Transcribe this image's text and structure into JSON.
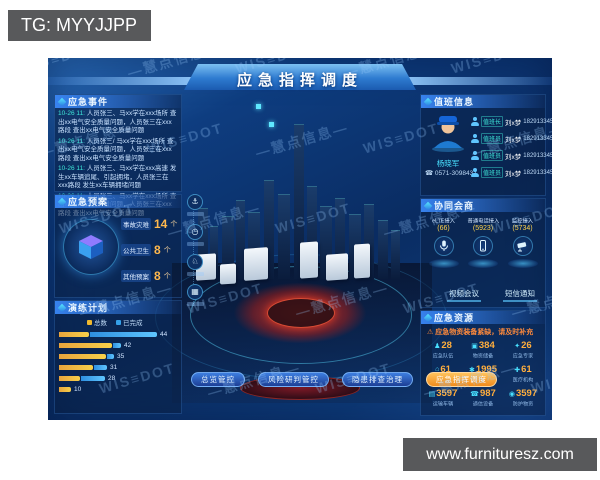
{
  "overlays": {
    "tg_label": "TG: MYYJJPP",
    "site_label": "www.furnituresz.com"
  },
  "header": {
    "title": "应急指挥调度"
  },
  "watermark": {
    "brand": "WIS≡DOT",
    "cn": "—慧点信息—"
  },
  "colors": {
    "accent_teal": "#3ee6d8",
    "accent_yellow": "#f0b92e",
    "accent_blue": "#35a0e8",
    "warn_orange": "#ff8a3c",
    "button_orange": "#f08c1e"
  },
  "panels": {
    "events": {
      "title": "应急事件",
      "items": [
        {
          "tag": "10-26 11:",
          "text": "人员张三、马xx学在xxx场所 查出xx电气安全质量问题，人员张三在xxx路段 查出xx电气安全质量问题"
        },
        {
          "tag": "10-26 11:",
          "text": "人员张三/ 马xx学在xxx场所 查出xx电气安全质量问题，人员张三在xxx路段 查出xx电气安全质量问题"
        },
        {
          "tag": "10-26 11:",
          "text": "人员张三、马xx学在xxx高速 发生xx车辆追尾、引起拥堵，人员张三在xxx路段 发生xx车辆拥堵问题"
        },
        {
          "tag": "10-26 11:",
          "text": "人员张三、马xx学在xxx场所 查出xx电气安全质量问题，人员张三在xxx路段 查出xx电气安全质量问题"
        }
      ]
    },
    "plans": {
      "title": "应急预案",
      "stats": [
        {
          "label": "事故灾难",
          "value": "14",
          "unit": "个"
        },
        {
          "label": "公共卫生",
          "value": "8",
          "unit": "个"
        },
        {
          "label": "其他预案",
          "value": "8",
          "unit": "个"
        }
      ]
    },
    "drills": {
      "title": "演练计划",
      "legend": [
        {
          "label": "总数",
          "color": "#f0b92e"
        },
        {
          "label": "已完成",
          "color": "#35a0e8"
        }
      ],
      "bars": [
        {
          "yellow": 30,
          "blue": 67,
          "value": "44"
        },
        {
          "yellow": 53,
          "blue": 8,
          "value": "42"
        },
        {
          "yellow": 47,
          "blue": 7,
          "value": "35"
        },
        {
          "yellow": 34,
          "blue": 13,
          "value": "31"
        },
        {
          "yellow": 21,
          "blue": 24,
          "value": "28"
        },
        {
          "yellow": 12,
          "blue": 0,
          "value": "10"
        }
      ]
    },
    "duty": {
      "title": "值班信息",
      "officer": {
        "name": "杨晓军",
        "phone": "0571-3098437"
      },
      "rows": [
        {
          "role": "值班长",
          "name": "刘x梦",
          "phone": "18291334567"
        },
        {
          "role": "值班员",
          "name": "刘x梦",
          "phone": "18291334567"
        },
        {
          "role": "值班员",
          "name": "刘x梦",
          "phone": "18291334567"
        },
        {
          "role": "值班员",
          "name": "刘x梦",
          "phone": "18291334567"
        }
      ]
    },
    "collab": {
      "title": "协同会商",
      "channels": [
        {
          "icon": "mic",
          "label": "eLTE接入",
          "count": "(66)"
        },
        {
          "icon": "phone",
          "label": "普通电话接入",
          "count": "(5923)"
        },
        {
          "icon": "camera",
          "label": "监控接入",
          "count": "(5734)"
        }
      ],
      "buttons": [
        "视频会议",
        "短信通知"
      ]
    },
    "resources": {
      "title": "应急资源",
      "warning": "应急物资装备紧缺，请及时补充",
      "tiles": [
        {
          "icon": "user",
          "value": "28",
          "label": "应急队伍"
        },
        {
          "icon": "box",
          "value": "384",
          "label": "物资储备"
        },
        {
          "icon": "expert",
          "value": "26",
          "label": "应急专家"
        },
        {
          "icon": "home",
          "value": "61",
          "label": "避难场所"
        },
        {
          "icon": "gear",
          "value": "1995",
          "label": "装备数量"
        },
        {
          "icon": "med",
          "value": "61",
          "label": "医疗机构"
        },
        {
          "icon": "truck",
          "value": "3597",
          "label": "运输车辆"
        },
        {
          "icon": "phone",
          "value": "987",
          "label": "通信设备"
        },
        {
          "icon": "shield",
          "value": "3597",
          "label": "防护物资"
        }
      ]
    }
  },
  "map": {
    "rail": [
      {
        "icon": "anchor"
      },
      {
        "icon": "clock"
      },
      {
        "icon": "horse"
      },
      {
        "icon": "building"
      }
    ],
    "buttons": [
      {
        "label": "总览管控",
        "variant": "blue"
      },
      {
        "label": "风险研判管控",
        "variant": "blue"
      },
      {
        "label": "隐患排查治理",
        "variant": "blue"
      },
      {
        "label": "应急指挥调度",
        "variant": "orange"
      }
    ]
  }
}
